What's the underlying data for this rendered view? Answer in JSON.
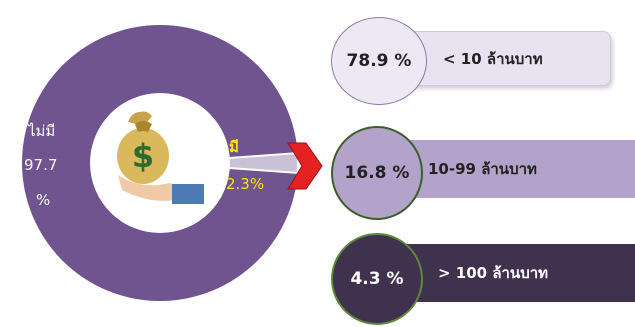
{
  "chart_data": [
    {
      "type": "pie",
      "categories": [
        "ไม่มี",
        "มี"
      ],
      "values": [
        97.7,
        2.3
      ],
      "labels": {
        "no": {
          "name": "ไม่มี",
          "value_line1": "97.7",
          "value_line2": "%"
        },
        "yes": {
          "name": "มี",
          "value": "2.3%"
        }
      },
      "colors": [
        "#6f5490",
        "#c9c2d6"
      ],
      "center_icon": "money-bag-hand-icon"
    },
    {
      "type": "bar",
      "categories": [
        "< 10 ล้านบาท",
        "10-99 ล้านบาท",
        "> 100 ล้านบาท"
      ],
      "values": [
        78.9,
        16.8,
        4.3
      ],
      "value_labels": [
        "78.9 %",
        "16.8 %",
        "4.3 %"
      ],
      "colors": [
        "#e9e3f1",
        "#b3a2c9",
        "#40314f"
      ]
    }
  ]
}
